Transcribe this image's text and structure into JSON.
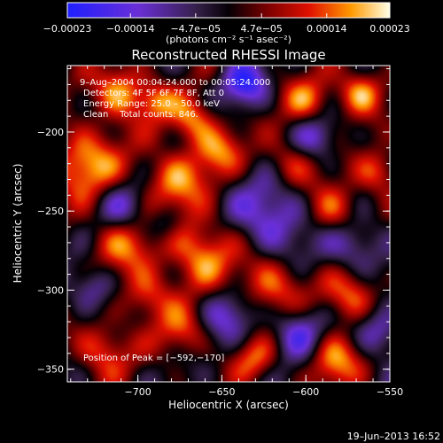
{
  "chart_data": {
    "type": "heatmap",
    "title": "Reconstructed RHESSI Image",
    "xlabel": "Heliocentric X (arcsec)",
    "ylabel": "Heliocentric Y (arcsec)",
    "xlim": [
      -742,
      -550
    ],
    "ylim": [
      -358,
      -158
    ],
    "x_ticks": [
      -700,
      -650,
      -600,
      -550
    ],
    "x_tick_labels": [
      "−700",
      "−650",
      "−600",
      "−550"
    ],
    "y_ticks": [
      -350,
      -300,
      -250,
      -200
    ],
    "y_tick_labels": [
      "−350",
      "−300",
      "−250",
      "−200"
    ],
    "colorbar": {
      "range": [
        -0.00023,
        0.00023
      ],
      "tick_values": [
        -0.00023,
        -0.00014,
        -4.7e-05,
        4.7e-05,
        0.00014,
        0.00023
      ],
      "tick_labels": [
        "−0.00023",
        "−0.00014",
        "−4.7e−05",
        "4.7e−05",
        "0.00014",
        "0.00023"
      ],
      "unit_label": "(photons cm⁻² s⁻¹ asec⁻²)"
    },
    "annotations": {
      "time_range": "9–Aug–2004 00:04:24.000 to 00:05:24.000",
      "detectors": "Detectors: 4F 5F 6F 7F 8F, Att 0",
      "energy": "Energy Range: 25.0 – 50.0 keV",
      "algorithm": "Clean    Total counts: 846.",
      "peak": "Position of Peak = [−592,−170]"
    },
    "timestamp": "19–Jun–2013 16:52"
  }
}
